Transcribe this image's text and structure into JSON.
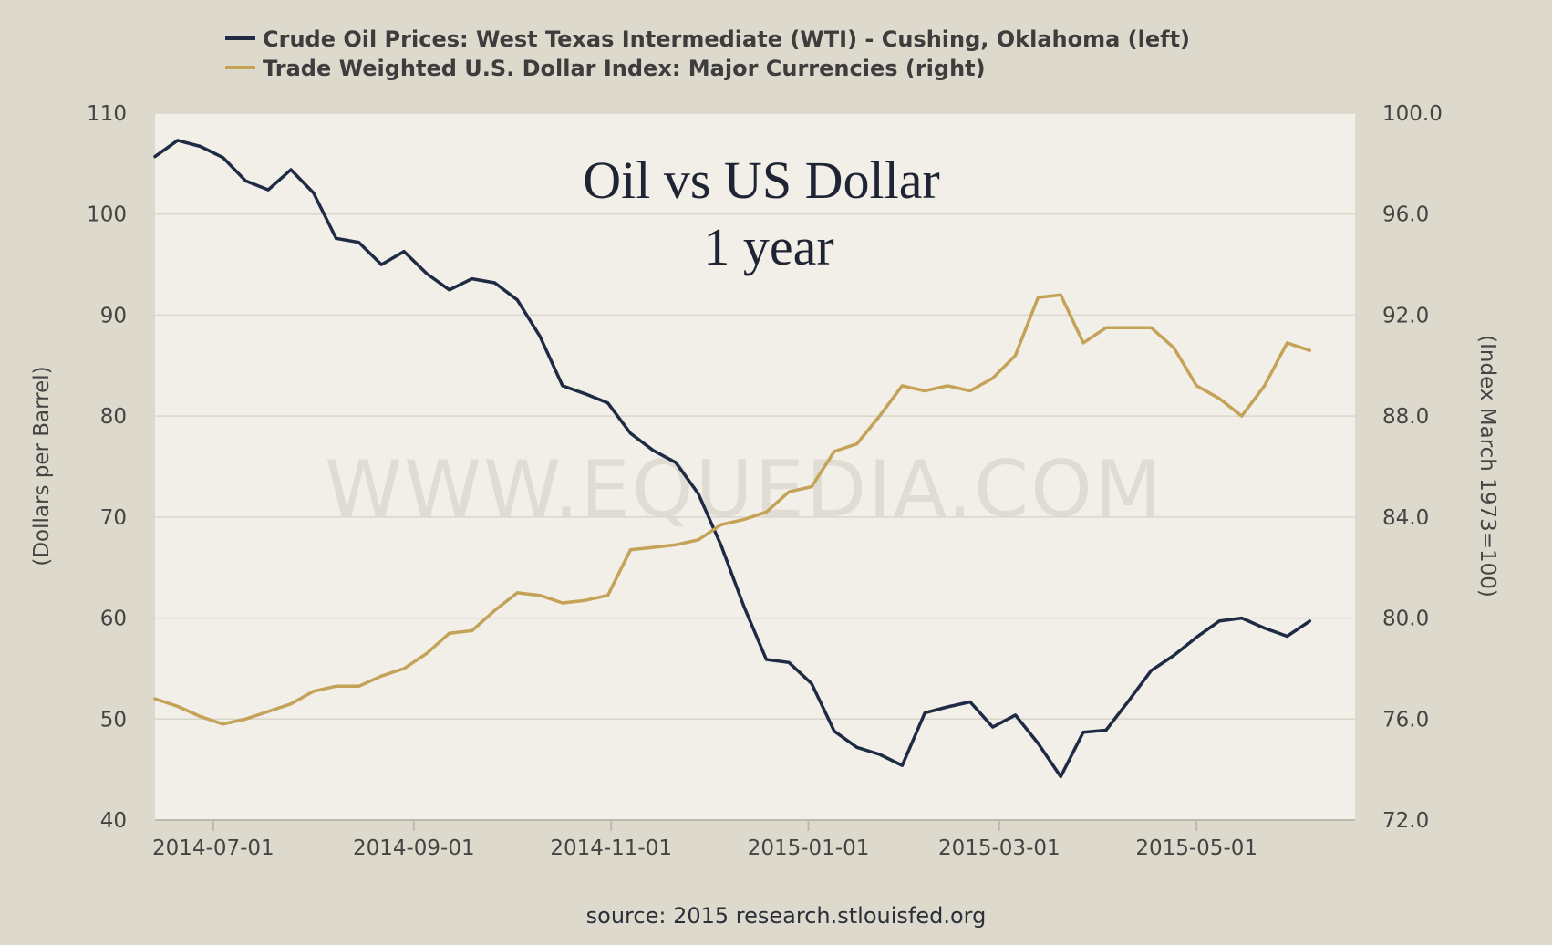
{
  "chart_data": {
    "type": "line",
    "title": "Oil vs US Dollar",
    "subtitle": "1 year",
    "watermark": "WWW.EQUEDIA.COM",
    "source": "source: 2015 research.stlouisfed.org",
    "ylabel_left": "(Dollars per Barrel)",
    "ylabel_right": "(Index March 1973=100)",
    "ylim_left": [
      40,
      110
    ],
    "yticks_left": [
      "40",
      "50",
      "60",
      "70",
      "80",
      "90",
      "100",
      "110"
    ],
    "ylim_right": [
      72.0,
      100.0
    ],
    "yticks_right": [
      "72.0",
      "76.0",
      "80.0",
      "84.0",
      "88.0",
      "92.0",
      "96.0",
      "100.0"
    ],
    "xlim": [
      "2014-06-13",
      "2015-06-19"
    ],
    "xticks": [
      "2014-07-01",
      "2014-09-01",
      "2014-11-01",
      "2015-01-01",
      "2015-03-01",
      "2015-05-01"
    ],
    "grid": true,
    "legend_position": "top",
    "colors": {
      "oil": "#1f2a44",
      "dollar": "#c4a258",
      "plot_bg": "#f1efe8",
      "page_bg": "#ddd9cc"
    },
    "series": [
      {
        "name": "Crude Oil Prices: West Texas Intermediate (WTI) - Cushing, Oklahoma (left)",
        "axis": "left",
        "x": [
          "2014-06-13",
          "2014-06-20",
          "2014-06-27",
          "2014-07-04",
          "2014-07-11",
          "2014-07-18",
          "2014-07-25",
          "2014-08-01",
          "2014-08-08",
          "2014-08-15",
          "2014-08-22",
          "2014-08-29",
          "2014-09-05",
          "2014-09-12",
          "2014-09-19",
          "2014-09-26",
          "2014-10-03",
          "2014-10-10",
          "2014-10-17",
          "2014-10-24",
          "2014-10-31",
          "2014-11-07",
          "2014-11-14",
          "2014-11-21",
          "2014-11-28",
          "2014-12-05",
          "2014-12-12",
          "2014-12-19",
          "2014-12-26",
          "2015-01-02",
          "2015-01-09",
          "2015-01-16",
          "2015-01-23",
          "2015-01-30",
          "2015-02-06",
          "2015-02-13",
          "2015-02-20",
          "2015-02-27",
          "2015-03-06",
          "2015-03-13",
          "2015-03-20",
          "2015-03-27",
          "2015-04-03",
          "2015-04-10",
          "2015-04-17",
          "2015-04-24",
          "2015-05-01",
          "2015-05-08",
          "2015-05-15",
          "2015-05-22",
          "2015-05-29",
          "2015-06-05"
        ],
        "values": [
          105.7,
          107.3,
          106.7,
          105.6,
          103.3,
          102.4,
          104.4,
          102.1,
          97.6,
          97.2,
          95.0,
          96.3,
          94.1,
          92.5,
          93.6,
          93.2,
          91.5,
          87.9,
          83.0,
          82.2,
          81.3,
          78.3,
          76.6,
          75.4,
          72.3,
          67.2,
          61.2,
          55.9,
          55.6,
          53.5,
          48.8,
          47.2,
          46.5,
          45.4,
          50.6,
          51.2,
          51.7,
          49.2,
          50.4,
          47.6,
          44.3,
          48.7,
          48.9,
          51.8,
          54.8,
          56.3,
          58.1,
          59.7,
          60.0,
          59.0,
          58.2,
          59.7
        ]
      },
      {
        "name": "Trade Weighted U.S. Dollar Index: Major Currencies (right)",
        "axis": "right",
        "x": [
          "2014-06-13",
          "2014-06-20",
          "2014-06-27",
          "2014-07-04",
          "2014-07-11",
          "2014-07-18",
          "2014-07-25",
          "2014-08-01",
          "2014-08-08",
          "2014-08-15",
          "2014-08-22",
          "2014-08-29",
          "2014-09-05",
          "2014-09-12",
          "2014-09-19",
          "2014-09-26",
          "2014-10-03",
          "2014-10-10",
          "2014-10-17",
          "2014-10-24",
          "2014-10-31",
          "2014-11-07",
          "2014-11-14",
          "2014-11-21",
          "2014-11-28",
          "2014-12-05",
          "2014-12-12",
          "2014-12-19",
          "2014-12-26",
          "2015-01-02",
          "2015-01-09",
          "2015-01-16",
          "2015-01-23",
          "2015-01-30",
          "2015-02-06",
          "2015-02-13",
          "2015-02-20",
          "2015-02-27",
          "2015-03-06",
          "2015-03-13",
          "2015-03-20",
          "2015-03-27",
          "2015-04-03",
          "2015-04-10",
          "2015-04-17",
          "2015-04-24",
          "2015-05-01",
          "2015-05-08",
          "2015-05-15",
          "2015-05-22",
          "2015-05-29",
          "2015-06-05"
        ],
        "values": [
          76.8,
          76.5,
          76.1,
          75.8,
          76.0,
          76.3,
          76.6,
          77.1,
          77.3,
          77.3,
          77.7,
          78.0,
          78.6,
          79.4,
          79.5,
          80.3,
          81.0,
          80.9,
          80.6,
          80.7,
          80.9,
          82.7,
          82.8,
          82.9,
          83.1,
          83.7,
          83.9,
          84.2,
          85.0,
          85.2,
          86.6,
          86.9,
          88.0,
          89.2,
          89.0,
          89.2,
          89.0,
          89.5,
          90.4,
          92.7,
          92.8,
          90.9,
          91.5,
          91.5,
          91.5,
          90.7,
          89.2,
          88.7,
          88.0,
          89.2,
          90.9,
          90.6
        ]
      }
    ]
  }
}
